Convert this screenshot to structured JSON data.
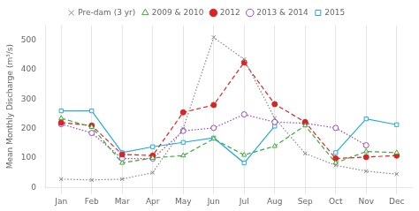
{
  "chart_data": {
    "type": "line",
    "ylabel": "Mean Monthly Discharge (m³/s)",
    "categories": [
      "Jan",
      "Feb",
      "Mar",
      "Apr",
      "May",
      "Jun",
      "Jul",
      "Aug",
      "Sep",
      "Oct",
      "Nov",
      "Dec"
    ],
    "series": [
      {
        "name": "Pre-dam (3 yr)",
        "color": "#888888",
        "marker": "x",
        "line_style": "dotted",
        "values": [
          28,
          25,
          28,
          50,
          200,
          510,
          435,
          235,
          115,
          75,
          55,
          45
        ]
      },
      {
        "name": "2009 & 2010",
        "color": "#3aaa3a",
        "marker": "triangle-open",
        "line_style": "dashed",
        "values": [
          235,
          205,
          83,
          100,
          108,
          165,
          110,
          140,
          210,
          83,
          122,
          118
        ]
      },
      {
        "name": "2012",
        "color": "#dd2222",
        "marker": "circle",
        "line_style": "dashed",
        "values": [
          220,
          210,
          112,
          108,
          255,
          280,
          425,
          283,
          222,
          98,
          103,
          108
        ]
      },
      {
        "name": "2013 & 2014",
        "color": "#9944cc",
        "marker": "circle-open",
        "line_style": "dotted",
        "values": [
          215,
          185,
          98,
          98,
          192,
          202,
          248,
          222,
          218,
          202,
          143,
          null
        ]
      },
      {
        "name": "2015",
        "color": "#22aadd",
        "marker": "square-open",
        "line_style": "solid",
        "values": [
          260,
          260,
          118,
          138,
          153,
          168,
          83,
          208,
          null,
          118,
          233,
          213
        ]
      }
    ],
    "ylim": [
      0,
      550
    ],
    "yticks": [
      0,
      100,
      200,
      300,
      400,
      500
    ],
    "grid": "x",
    "legend": "top"
  }
}
